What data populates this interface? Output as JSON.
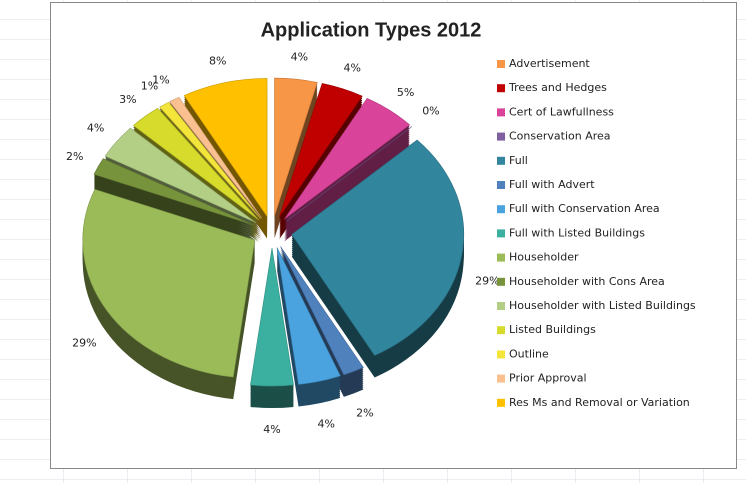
{
  "chart_data": {
    "type": "pie",
    "title": "Application Types 2012",
    "categories": [
      "Advertisement",
      "Trees and Hedges",
      "Cert of Lawfullness",
      "Conservation Area",
      "Full",
      "Full with Advert",
      "Full with Conservation Area",
      "Full with Listed Buildings",
      "Householder",
      "Householder with Cons Area",
      "Householder with Listed Buildings",
      "Listed Buildings",
      "Outline",
      "Prior Approval",
      "Res Ms and Removal or Variation"
    ],
    "values": [
      4,
      4,
      5,
      0,
      29,
      2,
      4,
      4,
      29,
      2,
      4,
      3,
      1,
      1,
      8
    ],
    "value_labels": [
      "4%",
      "4%",
      "5%",
      "0%",
      "29%",
      "2%",
      "4%",
      "4%",
      "29%",
      "2%",
      "4%",
      "3%",
      "1%",
      "1%",
      "8%"
    ],
    "colors": [
      "#f79646",
      "#c00000",
      "#d9449a",
      "#7f5fa0",
      "#31859c",
      "#4f81bd",
      "#4aa3df",
      "#3cb0a0",
      "#9bbb59",
      "#77933c",
      "#b3cf86",
      "#d7dc2c",
      "#f3e53a",
      "#fac08f",
      "#ffc000"
    ]
  }
}
